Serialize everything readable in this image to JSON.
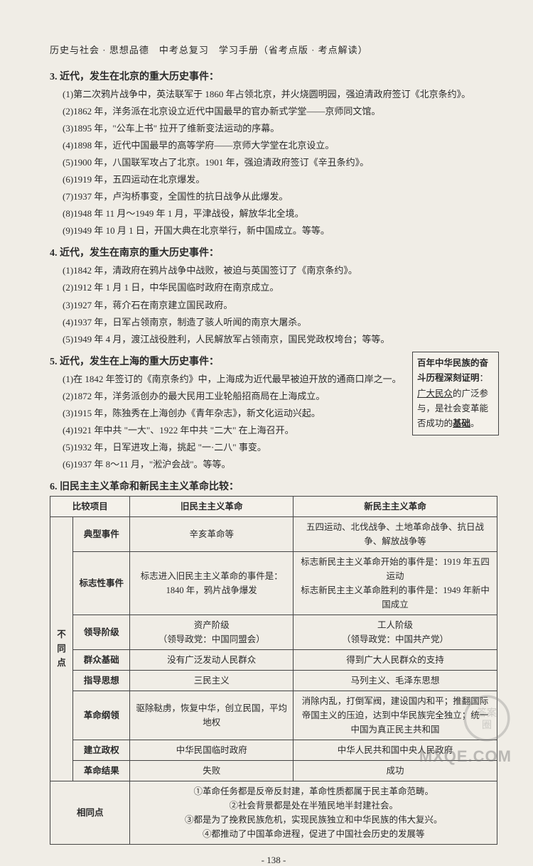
{
  "header": "历史与社会 · 思想品德　中考总复习　学习手册（省考点版 · 考点解读）",
  "s3": {
    "title": "3. 近代，发生在北京的重大历史事件：",
    "items": [
      "(1)第二次鸦片战争中，英法联军于 1860 年占领北京，并火烧圆明园，强迫清政府签订《北京条约》。",
      "(2)1862 年，洋务派在北京设立近代中国最早的官办新式学堂——京师同文馆。",
      "(3)1895 年，\"公车上书\" 拉开了维新变法运动的序幕。",
      "(4)1898 年，近代中国最早的高等学府——京师大学堂在北京设立。",
      "(5)1900 年，八国联军攻占了北京。1901 年，强迫清政府签订《辛丑条约》。",
      "(6)1919 年，五四运动在北京爆发。",
      "(7)1937 年，卢沟桥事变，全国性的抗日战争从此爆发。",
      "(8)1948 年 11 月～1949 年 1 月，平津战役，解放华北全境。",
      "(9)1949 年 10 月 1 日，开国大典在北京举行，新中国成立。等等。"
    ]
  },
  "s4": {
    "title": "4. 近代，发生在南京的重大历史事件：",
    "items": [
      "(1)1842 年，清政府在鸦片战争中战败，被迫与英国签订了《南京条约》。",
      "(2)1912 年 1 月 1 日，中华民国临时政府在南京成立。",
      "(3)1927 年，蒋介石在南京建立国民政府。",
      "(4)1937 年，日军占领南京，制造了骇人听闻的南京大屠杀。",
      "(5)1949 年 4 月，渡江战役胜利，人民解放军占领南京，国民党政权垮台；等等。"
    ]
  },
  "s5": {
    "title": "5. 近代，发生在上海的重大历史事件：",
    "items": [
      "(1)在 1842 年签订的《南京条约》中，上海成为近代最早被迫开放的通商口岸之一。",
      "(2)1872 年，洋务派创办的最大民用工业轮船招商局在上海成立。",
      "(3)1915 年，陈独秀在上海创办《青年杂志》，新文化运动兴起。",
      "(4)1921 年中共 \"一大\"、1922 年中共 \"二大\" 在上海召开。",
      "(5)1932 年，日军进攻上海，挑起 \"一·二八\" 事变。",
      "(6)1937 年 8～11 月，\"淞沪会战\"。等等。"
    ]
  },
  "callout": {
    "line1a": "百年中华民族的奋斗历程深刻证明",
    "line2a": "：",
    "line3": "广大民众",
    "line4": "的广泛参与，是社会变革能否成功的",
    "line5": "基础",
    "line6": "。"
  },
  "s6title": "6. 旧民主主义革命和新民主主义革命比较：",
  "table": {
    "headers": [
      "比较项目",
      "旧民主主义革命",
      "新民主主义革命"
    ],
    "diffLabel": "不同点",
    "rows": [
      {
        "label": "典型事件",
        "old": "辛亥革命等",
        "new": "五四运动、北伐战争、土地革命战争、抗日战争、解放战争等"
      },
      {
        "label": "标志性事件",
        "old": "标志进入旧民主主义革命的事件是：1840 年，鸦片战争爆发",
        "new": "标志新民主主义革命开始的事件是：1919 年五四运动\n标志新民主主义革命胜利的事件是：1949 年新中国成立"
      },
      {
        "label": "领导阶级",
        "old": "资产阶级\n（领导政党：中国同盟会）",
        "new": "工人阶级\n（领导政党：中国共产党）"
      },
      {
        "label": "群众基础",
        "old": "没有广泛发动人民群众",
        "new": "得到广大人民群众的支持"
      },
      {
        "label": "指导思想",
        "old": "三民主义",
        "new": "马列主义、毛泽东思想"
      },
      {
        "label": "革命纲领",
        "old": "驱除鞑虏，恢复中华，创立民国，平均地权",
        "new": "消除内乱，打倒军阀，建设国内和平；推翻国际帝国主义的压迫，达到中华民族完全独立；统一中国为真正民主共和国"
      },
      {
        "label": "建立政权",
        "old": "中华民国临时政府",
        "new": "中华人民共和国中央人民政府"
      },
      {
        "label": "革命结果",
        "old": "失败",
        "new": "成功"
      }
    ],
    "sameLabel": "相同点",
    "same": "①革命任务都是反帝反封建，革命性质都属于民主革命范畴。\n②社会背景都是处在半殖民地半封建社会。\n③都是为了挽救民族危机，实现民族独立和中华民族的伟大复兴。\n④都推动了中国革命进程，促进了中国社会历史的发展等"
  },
  "pageNum": "- 138 -",
  "watermark": "MXQE.COM"
}
